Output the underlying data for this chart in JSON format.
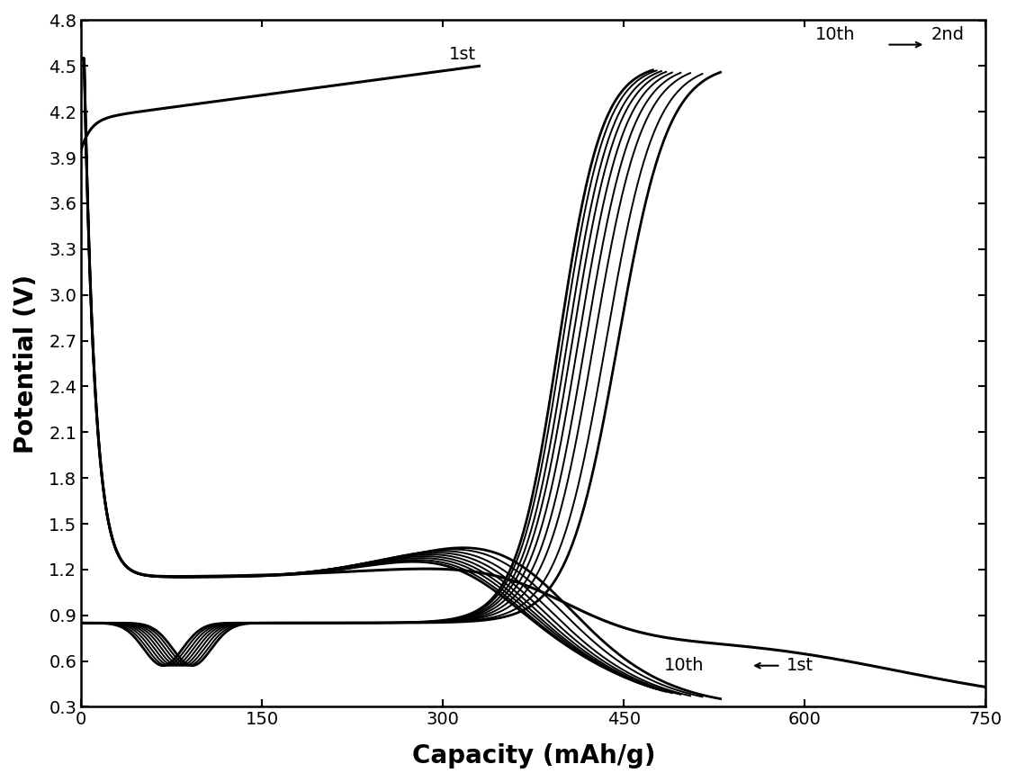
{
  "xlim": [
    0,
    750
  ],
  "ylim": [
    0.3,
    4.8
  ],
  "xticks": [
    0,
    150,
    300,
    450,
    600,
    750
  ],
  "yticks": [
    0.3,
    0.6,
    0.9,
    1.2,
    1.5,
    1.8,
    2.1,
    2.4,
    2.7,
    3.0,
    3.3,
    3.6,
    3.9,
    4.2,
    4.5,
    4.8
  ],
  "xlabel": "Capacity (mAh/g)",
  "ylabel": "Potential (V)",
  "line_color": "#000000",
  "bg_color": "#ffffff"
}
